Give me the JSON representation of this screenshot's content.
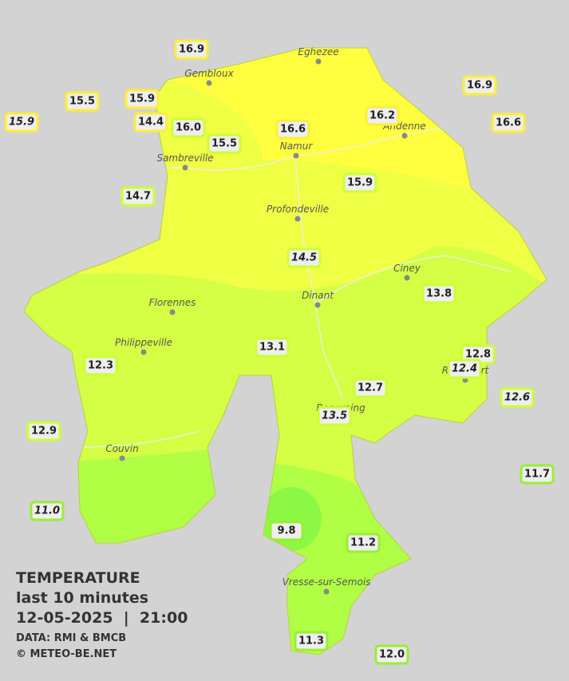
{
  "legend": {
    "title": "TEMPERATURE",
    "subtitle": "last 10 minutes",
    "timestamp": "12-05-2025  |  21:00",
    "source": "DATA: RMI & BMCB",
    "copyright": "© METEO-BE.NET"
  },
  "cities": [
    "Eghezee",
    "Gembloux",
    "Andenne",
    "Namur",
    "Sambreville",
    "Profondeville",
    "Ciney",
    "Dinant",
    "Florennes",
    "Philippeville",
    "Rochefort",
    "Beauraing",
    "Couvin",
    "Vresse-sur-Semois"
  ],
  "readings": [
    "16.9",
    "15.5",
    "15.9",
    "15.9",
    "14.4",
    "16.0",
    "15.5",
    "16.6",
    "16.2",
    "16.9",
    "16.6",
    "14.7",
    "15.9",
    "14.5",
    "13.8",
    "13.1",
    "12.3",
    "12.8",
    "12.4",
    "12.7",
    "12.6",
    "13.5",
    "12.9",
    "11.7",
    "11.0",
    "9.8",
    "11.2",
    "11.3",
    "12.0"
  ]
}
